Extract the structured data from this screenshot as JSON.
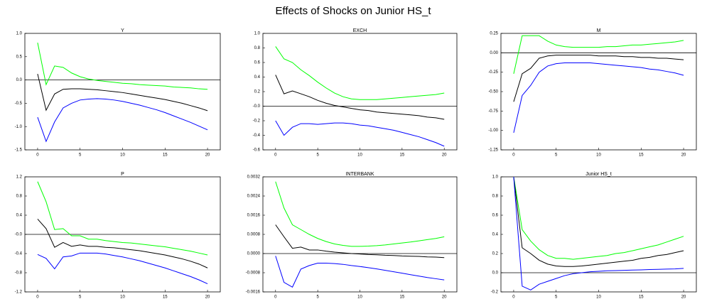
{
  "title": "Effects of Shocks on Junior HS_t",
  "chart_data": [
    {
      "type": "line",
      "title": "Y",
      "x": [
        0,
        1,
        2,
        3,
        4,
        5,
        6,
        7,
        8,
        9,
        10,
        11,
        12,
        13,
        14,
        15,
        16,
        17,
        18,
        19,
        20
      ],
      "xlim": [
        -1.5,
        21.5
      ],
      "xticks": [
        0,
        5,
        10,
        15,
        20
      ],
      "ylim": [
        -1.5,
        1.0
      ],
      "yticks": [
        -1.5,
        {
          "value": -1.0,
          "label": "-1.0"
        },
        -0.5,
        {
          "value": 0,
          "label": "0.0"
        },
        0.5,
        {
          "value": 1.0,
          "label": "1.0"
        }
      ],
      "zero_line": true,
      "series": [
        {
          "color": "#00ff00",
          "values": [
            0.8,
            -0.1,
            0.3,
            0.27,
            0.15,
            0.07,
            0.02,
            -0.01,
            -0.03,
            -0.05,
            -0.07,
            -0.08,
            -0.1,
            -0.11,
            -0.12,
            -0.13,
            -0.15,
            -0.16,
            -0.17,
            -0.19,
            -0.2
          ]
        },
        {
          "color": "#000000",
          "values": [
            0.13,
            -0.65,
            -0.3,
            -0.2,
            -0.19,
            -0.19,
            -0.2,
            -0.21,
            -0.23,
            -0.25,
            -0.27,
            -0.3,
            -0.33,
            -0.36,
            -0.39,
            -0.42,
            -0.46,
            -0.5,
            -0.55,
            -0.6,
            -0.66
          ]
        },
        {
          "color": "#0000ff",
          "values": [
            -0.8,
            -1.32,
            -0.9,
            -0.6,
            -0.5,
            -0.43,
            -0.41,
            -0.4,
            -0.41,
            -0.43,
            -0.46,
            -0.5,
            -0.54,
            -0.59,
            -0.64,
            -0.7,
            -0.77,
            -0.84,
            -0.91,
            -0.99,
            -1.07
          ]
        }
      ]
    },
    {
      "type": "line",
      "title": "EXCH",
      "x": [
        0,
        1,
        2,
        3,
        4,
        5,
        6,
        7,
        8,
        9,
        10,
        11,
        12,
        13,
        14,
        15,
        16,
        17,
        18,
        19,
        20
      ],
      "xlim": [
        -1.5,
        21.5
      ],
      "xticks": [
        0,
        5,
        10,
        15,
        20
      ],
      "ylim": [
        -0.6,
        1.0
      ],
      "yticks": [
        -0.6,
        -0.4,
        -0.2,
        {
          "value": 0,
          "label": "-0.0"
        },
        0.2,
        0.4,
        0.6,
        0.8,
        {
          "value": 1.0,
          "label": "1.0"
        }
      ],
      "zero_line": true,
      "series": [
        {
          "color": "#00ff00",
          "values": [
            0.82,
            0.65,
            0.6,
            0.5,
            0.42,
            0.33,
            0.25,
            0.18,
            0.13,
            0.1,
            0.09,
            0.09,
            0.09,
            0.1,
            0.11,
            0.12,
            0.13,
            0.14,
            0.15,
            0.16,
            0.18
          ]
        },
        {
          "color": "#000000",
          "values": [
            0.43,
            0.17,
            0.21,
            0.17,
            0.13,
            0.08,
            0.04,
            0.01,
            -0.01,
            -0.03,
            -0.05,
            -0.06,
            -0.08,
            -0.09,
            -0.1,
            -0.11,
            -0.12,
            -0.13,
            -0.15,
            -0.16,
            -0.18
          ]
        },
        {
          "color": "#0000ff",
          "values": [
            -0.2,
            -0.4,
            -0.29,
            -0.24,
            -0.24,
            -0.25,
            -0.24,
            -0.23,
            -0.23,
            -0.24,
            -0.26,
            -0.27,
            -0.29,
            -0.31,
            -0.33,
            -0.36,
            -0.39,
            -0.42,
            -0.46,
            -0.5,
            -0.55
          ]
        }
      ]
    },
    {
      "type": "line",
      "title": "M",
      "x": [
        0,
        1,
        2,
        3,
        4,
        5,
        6,
        7,
        8,
        9,
        10,
        11,
        12,
        13,
        14,
        15,
        16,
        17,
        18,
        19,
        20
      ],
      "xlim": [
        -1.5,
        21.5
      ],
      "xticks": [
        0,
        5,
        10,
        15,
        20
      ],
      "ylim": [
        -1.25,
        0.25
      ],
      "yticks": [
        -1.25,
        {
          "value": -1.0,
          "label": "-1.00"
        },
        -0.75,
        {
          "value": -0.5,
          "label": "-0.50"
        },
        -0.25,
        {
          "value": 0,
          "label": "0.00"
        },
        0.25
      ],
      "zero_line": true,
      "series": [
        {
          "color": "#00ff00",
          "values": [
            -0.27,
            0.22,
            0.22,
            0.22,
            0.15,
            0.1,
            0.08,
            0.07,
            0.07,
            0.07,
            0.07,
            0.08,
            0.08,
            0.09,
            0.1,
            0.1,
            0.11,
            0.12,
            0.13,
            0.14,
            0.16
          ]
        },
        {
          "color": "#000000",
          "values": [
            -0.63,
            -0.27,
            -0.2,
            -0.07,
            -0.04,
            -0.03,
            -0.03,
            -0.03,
            -0.03,
            -0.03,
            -0.04,
            -0.04,
            -0.04,
            -0.05,
            -0.05,
            -0.06,
            -0.06,
            -0.07,
            -0.07,
            -0.08,
            -0.09
          ]
        },
        {
          "color": "#0000ff",
          "values": [
            -1.03,
            -0.55,
            -0.42,
            -0.25,
            -0.17,
            -0.14,
            -0.13,
            -0.13,
            -0.13,
            -0.13,
            -0.14,
            -0.15,
            -0.16,
            -0.17,
            -0.18,
            -0.19,
            -0.21,
            -0.22,
            -0.24,
            -0.26,
            -0.29
          ]
        }
      ]
    },
    {
      "type": "line",
      "title": "P",
      "x": [
        0,
        1,
        2,
        3,
        4,
        5,
        6,
        7,
        8,
        9,
        10,
        11,
        12,
        13,
        14,
        15,
        16,
        17,
        18,
        19,
        20
      ],
      "xlim": [
        -1.5,
        21.5
      ],
      "xticks": [
        0,
        5,
        10,
        15,
        20
      ],
      "ylim": [
        -1.2,
        1.2
      ],
      "yticks": [
        -1.2,
        -0.8,
        -0.4,
        {
          "value": 0,
          "label": "-0.0"
        },
        0.4,
        0.8,
        1.2
      ],
      "zero_line": true,
      "series": [
        {
          "color": "#00ff00",
          "values": [
            1.1,
            0.68,
            0.1,
            0.12,
            -0.03,
            -0.03,
            -0.1,
            -0.1,
            -0.13,
            -0.15,
            -0.17,
            -0.18,
            -0.2,
            -0.22,
            -0.24,
            -0.26,
            -0.29,
            -0.32,
            -0.35,
            -0.39,
            -0.43
          ]
        },
        {
          "color": "#000000",
          "values": [
            0.32,
            0.12,
            -0.27,
            -0.17,
            -0.25,
            -0.22,
            -0.25,
            -0.25,
            -0.27,
            -0.28,
            -0.3,
            -0.32,
            -0.34,
            -0.37,
            -0.4,
            -0.43,
            -0.47,
            -0.51,
            -0.56,
            -0.62,
            -0.7
          ]
        },
        {
          "color": "#0000ff",
          "values": [
            -0.42,
            -0.5,
            -0.72,
            -0.47,
            -0.45,
            -0.39,
            -0.39,
            -0.39,
            -0.41,
            -0.44,
            -0.47,
            -0.51,
            -0.55,
            -0.6,
            -0.65,
            -0.7,
            -0.76,
            -0.82,
            -0.88,
            -0.95,
            -1.03
          ]
        }
      ]
    },
    {
      "type": "line",
      "title": "INTERBANK",
      "x": [
        0,
        1,
        2,
        3,
        4,
        5,
        6,
        7,
        8,
        9,
        10,
        11,
        12,
        13,
        14,
        15,
        16,
        17,
        18,
        19,
        20
      ],
      "xlim": [
        -1.5,
        21.5
      ],
      "xticks": [
        0,
        5,
        10,
        15,
        20
      ],
      "ylim": [
        -0.0016,
        0.0032
      ],
      "yticks": [
        -0.0016,
        -0.0008,
        {
          "value": 0,
          "label": "0.0000"
        },
        0.0008,
        0.0016,
        0.0024,
        0.0032
      ],
      "zero_line": true,
      "series": [
        {
          "color": "#00ff00",
          "values": [
            0.003,
            0.0019,
            0.0012,
            0.001,
            0.0008,
            0.00063,
            0.0005,
            0.0004,
            0.00034,
            0.0003,
            0.0003,
            0.00031,
            0.00033,
            0.00036,
            0.0004,
            0.00044,
            0.00048,
            0.00053,
            0.00058,
            0.00063,
            0.0007
          ]
        },
        {
          "color": "#000000",
          "values": [
            0.0012,
            0.0007,
            0.00022,
            0.00027,
            0.00015,
            0.00015,
            0.0001,
            6e-05,
            3e-05,
            0,
            -2e-05,
            -4e-05,
            -5e-05,
            -7e-05,
            -8e-05,
            -0.0001,
            -0.00011,
            -0.00012,
            -0.00014,
            -0.00015,
            -0.00017
          ]
        },
        {
          "color": "#0000ff",
          "values": [
            -0.0001,
            -0.0012,
            -0.0014,
            -0.00065,
            -0.0005,
            -0.0004,
            -0.0004,
            -0.00042,
            -0.00045,
            -0.0005,
            -0.00054,
            -0.00059,
            -0.00064,
            -0.0007,
            -0.00076,
            -0.00082,
            -0.00088,
            -0.00094,
            -0.001,
            -0.00105,
            -0.0011
          ]
        }
      ]
    },
    {
      "type": "line",
      "title": "Junior HS_t",
      "x": [
        0,
        1,
        2,
        3,
        4,
        5,
        6,
        7,
        8,
        9,
        10,
        11,
        12,
        13,
        14,
        15,
        16,
        17,
        18,
        19,
        20
      ],
      "xlim": [
        -1.5,
        21.5
      ],
      "xticks": [
        0,
        5,
        10,
        15,
        20
      ],
      "ylim": [
        -0.2,
        1.0
      ],
      "yticks": [
        -0.2,
        {
          "value": 0,
          "label": "0.0"
        },
        0.2,
        0.4,
        0.6,
        0.8,
        {
          "value": 1.0,
          "label": "1.0"
        }
      ],
      "zero_line": true,
      "series": [
        {
          "color": "#00ff00",
          "values": [
            1.0,
            0.45,
            0.33,
            0.24,
            0.18,
            0.15,
            0.15,
            0.14,
            0.15,
            0.16,
            0.17,
            0.18,
            0.2,
            0.21,
            0.23,
            0.25,
            0.27,
            0.29,
            0.32,
            0.35,
            0.38
          ]
        },
        {
          "color": "#000000",
          "values": [
            1.0,
            0.26,
            0.2,
            0.13,
            0.09,
            0.07,
            0.065,
            0.065,
            0.07,
            0.08,
            0.09,
            0.1,
            0.11,
            0.12,
            0.13,
            0.15,
            0.16,
            0.18,
            0.19,
            0.21,
            0.23
          ]
        },
        {
          "color": "#0000ff",
          "values": [
            1.0,
            -0.14,
            -0.18,
            -0.12,
            -0.09,
            -0.06,
            -0.03,
            -0.01,
            0.0,
            0.01,
            0.015,
            0.02,
            0.022,
            0.025,
            0.028,
            0.03,
            0.033,
            0.035,
            0.038,
            0.04,
            0.045
          ]
        }
      ]
    }
  ]
}
